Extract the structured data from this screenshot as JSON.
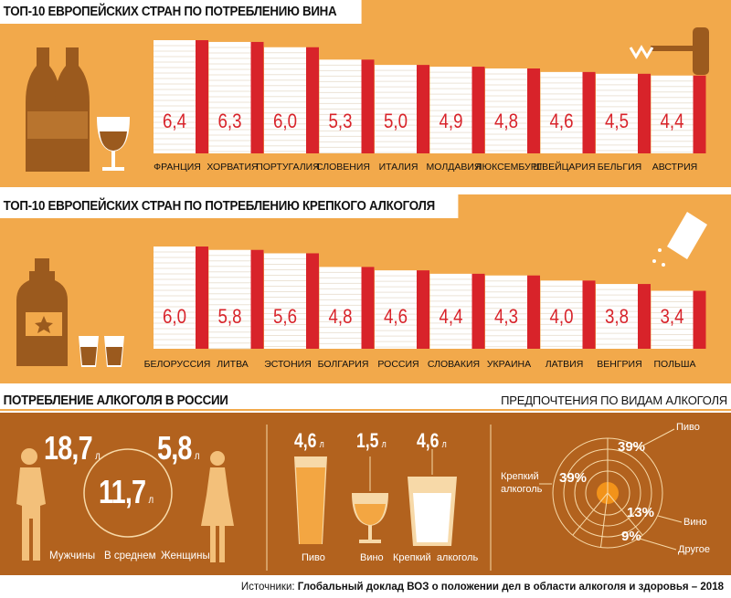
{
  "chart_data": [
    {
      "type": "bar",
      "title": "ТОП-10 ЕВРОПЕЙСКИХ СТРАН ПО ПОТРЕБЛЕНИЮ ВИНА",
      "categories": [
        "ФРАНЦИЯ",
        "ХОРВАТИЯ",
        "ПОРТУГАЛИЯ",
        "СЛОВЕНИЯ",
        "ИТАЛИЯ",
        "МОЛДАВИЯ",
        "ЛЮКСЕМБУРГ",
        "ШВЕЙЦАРИЯ",
        "БЕЛЬГИЯ",
        "АВСТРИЯ"
      ],
      "values": [
        6.4,
        6.3,
        6.0,
        5.3,
        5.0,
        4.9,
        4.8,
        4.6,
        4.5,
        4.4
      ],
      "labels": [
        "6,4",
        "6,3",
        "6,0",
        "5,3",
        "5,0",
        "4,9",
        "4,8",
        "4,6",
        "4,5",
        "4,4"
      ]
    },
    {
      "type": "bar",
      "title": "ТОП-10 ЕВРОПЕЙСКИХ СТРАН ПО ПОТРЕБЛЕНИЮ КРЕПКОГО АЛКОГОЛЯ",
      "categories": [
        "БЕЛОРУССИЯ",
        "ЛИТВА",
        "ЭСТОНИЯ",
        "БОЛГАРИЯ",
        "РОССИЯ",
        "СЛОВАКИЯ",
        "УКРАИНА",
        "ЛАТВИЯ",
        "ВЕНГРИЯ",
        "ПОЛЬША"
      ],
      "values": [
        6.0,
        5.8,
        5.6,
        4.8,
        4.6,
        4.4,
        4.3,
        4.0,
        3.8,
        3.4
      ],
      "labels": [
        "6,0",
        "5,8",
        "5,6",
        "4,8",
        "4,6",
        "4,4",
        "4,3",
        "4,0",
        "3,8",
        "3,4"
      ]
    },
    {
      "type": "pie",
      "title": "ПРЕДПОЧТЕНИЯ ПО ВИДАМ АЛКОГОЛЯ",
      "categories": [
        "Пиво",
        "Крепкий алкоголь",
        "Вино",
        "Другое"
      ],
      "values": [
        39,
        39,
        13,
        9
      ],
      "labels": [
        "39%",
        "39%",
        "13%",
        "9%"
      ]
    }
  ],
  "russia": {
    "title": "ПОТРЕБЛЕНИЕ АЛКОГОЛЯ В РОССИИ",
    "unit": "л",
    "men_value": "18,7",
    "men_label": "Мужчины",
    "avg_value": "11,7",
    "avg_label": "В среднем",
    "women_value": "5,8",
    "women_label": "Женщины",
    "drinks": [
      {
        "value": "4,6",
        "label": "Пиво"
      },
      {
        "value": "1,5",
        "label": "Вино"
      },
      {
        "value": "4,6",
        "label": "Крепкий  алкоголь"
      }
    ]
  },
  "pie_labels": {
    "beer": "Пиво",
    "spirits_line1": "Крепкий",
    "spirits_line2": "алкоголь",
    "wine": "Вино",
    "other": "Другое"
  },
  "source": {
    "prefix": "Источники:",
    "text": "Глобальный доклад ВОЗ о положении дел в области алкоголя и здоровья – 2018"
  },
  "colors": {
    "panel": "#f2a94b",
    "bar_red": "#d8232a",
    "icon_brown": "#9b5a1e",
    "bottom_bg": "#b2621e",
    "light": "#f7d9a8"
  }
}
